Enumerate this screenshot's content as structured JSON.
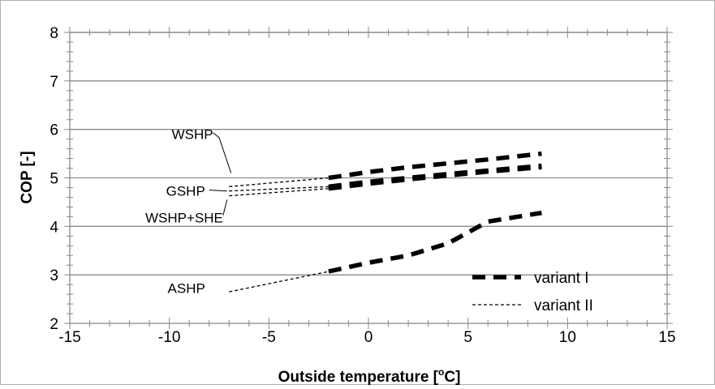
{
  "chart_data": {
    "type": "line",
    "title": "",
    "xlabel": "Outside temperature [",
    "xlabel_sup": "o",
    "xlabel_tail": "C]",
    "ylabel": "COP [-]",
    "xlim": [
      -15,
      15
    ],
    "ylim": [
      2,
      8
    ],
    "xticks": [
      -15,
      -10,
      -5,
      0,
      5,
      10,
      15
    ],
    "yticks": [
      2,
      3,
      4,
      5,
      6,
      7,
      8
    ],
    "grid": "horizontal major",
    "legend": {
      "placement": "bottom-right",
      "items": [
        {
          "label": "variant I",
          "style": "thick-dashed"
        },
        {
          "label": "variant II",
          "style": "thin-dashed"
        }
      ]
    },
    "series": [
      {
        "name": "WSHP",
        "variant": "variant I",
        "x": [
          -2,
          0,
          2,
          4,
          6,
          8.7
        ],
        "y": [
          5.0,
          5.12,
          5.22,
          5.3,
          5.38,
          5.5
        ]
      },
      {
        "name": "WSHP",
        "variant": "variant II",
        "x": [
          -7,
          -2
        ],
        "y": [
          4.82,
          5.0
        ]
      },
      {
        "name": "GSHP",
        "variant": "variant I",
        "x": [
          -2,
          0,
          2,
          4,
          6,
          8.7
        ],
        "y": [
          4.82,
          4.92,
          5.0,
          5.08,
          5.15,
          5.25
        ]
      },
      {
        "name": "GSHP",
        "variant": "variant II",
        "x": [
          -7,
          -2
        ],
        "y": [
          4.73,
          4.82
        ]
      },
      {
        "name": "WSHP+SHE",
        "variant": "variant I",
        "x": [
          -2,
          0,
          2,
          4,
          6,
          8.7
        ],
        "y": [
          4.78,
          4.88,
          4.97,
          5.05,
          5.13,
          5.22
        ]
      },
      {
        "name": "WSHP+SHE",
        "variant": "variant II",
        "x": [
          -7,
          -2
        ],
        "y": [
          4.63,
          4.78
        ]
      },
      {
        "name": "ASHP",
        "variant": "variant I",
        "x": [
          -2,
          0,
          2,
          4,
          6,
          8.7
        ],
        "y": [
          3.07,
          3.25,
          3.4,
          3.65,
          4.1,
          4.28
        ]
      },
      {
        "name": "ASHP",
        "variant": "variant II",
        "x": [
          -7,
          -2
        ],
        "y": [
          2.65,
          3.07
        ]
      }
    ],
    "annotations": [
      {
        "text": "WSHP",
        "x": -7.8,
        "y": 5.9
      },
      {
        "text": "GSHP",
        "x": -8.2,
        "y": 4.73
      },
      {
        "text": "WSHP+SHE",
        "x": -7.3,
        "y": 4.18
      },
      {
        "text": "ASHP",
        "x": -8.2,
        "y": 2.73
      }
    ]
  }
}
